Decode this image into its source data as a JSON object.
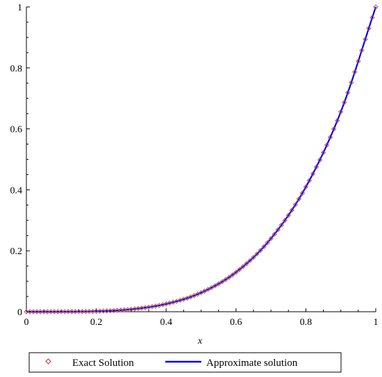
{
  "chart_data": {
    "type": "line",
    "xlabel": "x",
    "ylabel": "",
    "xlim": [
      0,
      1
    ],
    "ylim": [
      0,
      1
    ],
    "x_ticks": [
      "0",
      "0.2",
      "0.4",
      "0.6",
      "0.8",
      "1"
    ],
    "y_ticks": [
      "0",
      "0.2",
      "0.4",
      "0.6",
      "0.8",
      "1"
    ],
    "grid": false,
    "legend_position": "bottom",
    "series": [
      {
        "name": "Exact Solution",
        "style": "diamond markers",
        "color": "#c0504d",
        "x": [
          0,
          0.1,
          0.2,
          0.3,
          0.4,
          0.5,
          0.6,
          0.7,
          0.8,
          0.9,
          1
        ],
        "y": [
          0,
          0.0001,
          0.0016,
          0.0081,
          0.0256,
          0.0625,
          0.1296,
          0.2401,
          0.4096,
          0.6561,
          1
        ]
      },
      {
        "name": "Approximate solution",
        "style": "solid line",
        "color": "#0000ff",
        "x": [
          0,
          0.1,
          0.2,
          0.3,
          0.4,
          0.5,
          0.6,
          0.7,
          0.8,
          0.9,
          1
        ],
        "y": [
          0,
          0.0001,
          0.0016,
          0.0081,
          0.0256,
          0.0625,
          0.1296,
          0.2401,
          0.4096,
          0.6561,
          1
        ]
      }
    ]
  },
  "legend": {
    "exact_label": "Exact Solution",
    "approx_label": "Approximate solution"
  }
}
